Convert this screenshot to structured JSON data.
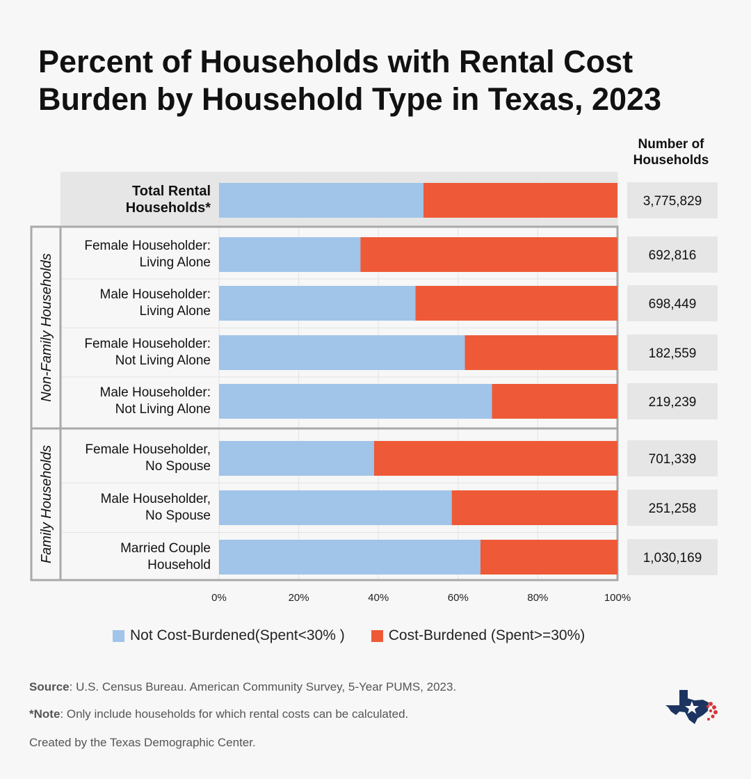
{
  "title": {
    "line1": "Percent of Households with Rental Cost",
    "line2": "Burden by Household Type in Texas, 2023"
  },
  "number_header": {
    "line1": "Number of",
    "line2": "Households"
  },
  "legend": {
    "not_burdened": "Not Cost-Burdened(Spent<30% )",
    "burdened": "Cost-Burdened (Spent>=30%)"
  },
  "footer": {
    "source_label": "Source",
    "source_text": ":  U.S. Census Bureau. American Community Survey, 5-Year PUMS, 2023.",
    "note_label": "*Note",
    "note_text": ": Only include households for which rental costs can be calculated.",
    "credit": "Created by the Texas Demographic Center."
  },
  "colors": {
    "not_burdened": "#a1c4e9",
    "burdened": "#ee5a37",
    "background": "#f7f7f7",
    "total_row_bg": "#e6e6e6",
    "count_box": "#e6e6e6",
    "group_border": "#a9a9a9"
  },
  "logo_icon": "texas-star-logo-icon",
  "chart_data": {
    "type": "bar",
    "orientation": "horizontal",
    "stacked": true,
    "xlim": [
      0,
      100
    ],
    "x_ticks": [
      "0%",
      "20%",
      "40%",
      "60%",
      "80%",
      "100%"
    ],
    "groups": [
      {
        "label": "",
        "rows": [
          0
        ]
      },
      {
        "label": "Non-Family Households",
        "rows": [
          1,
          2,
          3,
          4
        ]
      },
      {
        "label": "Family Households",
        "rows": [
          5,
          6,
          7
        ]
      }
    ],
    "categories": [
      [
        "Total Rental",
        "Households*"
      ],
      [
        "Female Householder:",
        "Living Alone"
      ],
      [
        "Male Householder:",
        "Living Alone"
      ],
      [
        "Female Householder:",
        "Not Living Alone"
      ],
      [
        "Male Householder:",
        "Not Living Alone"
      ],
      [
        "Female Householder,",
        "No Spouse"
      ],
      [
        "Male Householder,",
        "No Spouse"
      ],
      [
        "Married Couple",
        "Household"
      ]
    ],
    "series": [
      {
        "name": "Not Cost-Burdened(Spent<30% )",
        "values": [
          51.3,
          35.5,
          49.3,
          61.7,
          68.5,
          38.9,
          58.4,
          65.6
        ]
      },
      {
        "name": "Cost-Burdened (Spent>=30%)",
        "values": [
          48.7,
          64.5,
          50.7,
          38.3,
          31.5,
          61.1,
          41.6,
          34.4
        ]
      }
    ],
    "households": [
      "3,775,829",
      "692,816",
      "698,449",
      "182,559",
      "219,239",
      "701,339",
      "251,258",
      "1,030,169"
    ]
  }
}
